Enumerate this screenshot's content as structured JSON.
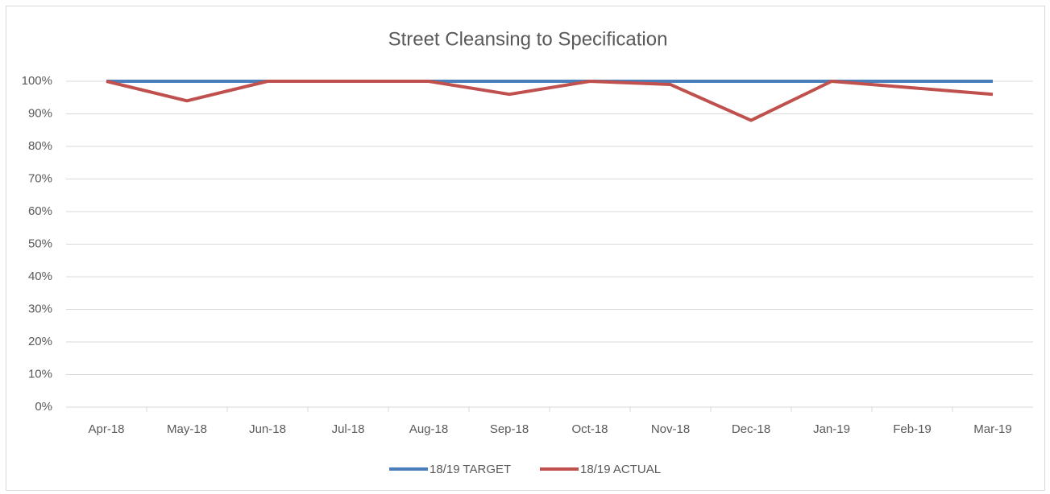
{
  "chart_data": {
    "type": "line",
    "title": "Street Cleansing to Specification",
    "categories": [
      "Apr-18",
      "May-18",
      "Jun-18",
      "Jul-18",
      "Aug-18",
      "Sep-18",
      "Oct-18",
      "Nov-18",
      "Dec-18",
      "Jan-19",
      "Feb-19",
      "Mar-19"
    ],
    "series": [
      {
        "name": "18/19 TARGET",
        "color": "#4a7ebb",
        "values": [
          100,
          100,
          100,
          100,
          100,
          100,
          100,
          100,
          100,
          100,
          100,
          100
        ]
      },
      {
        "name": "18/19 ACTUAL",
        "color": "#c0504d",
        "values": [
          100,
          94,
          100,
          100,
          100,
          96,
          100,
          99,
          88,
          100,
          98,
          96
        ]
      }
    ],
    "ylim": [
      0,
      100
    ],
    "yticks": [
      {
        "value": 0,
        "label": "0%"
      },
      {
        "value": 10,
        "label": "10%"
      },
      {
        "value": 20,
        "label": "20%"
      },
      {
        "value": 30,
        "label": "30%"
      },
      {
        "value": 40,
        "label": "40%"
      },
      {
        "value": 50,
        "label": "50%"
      },
      {
        "value": 60,
        "label": "60%"
      },
      {
        "value": 70,
        "label": "70%"
      },
      {
        "value": 80,
        "label": "80%"
      },
      {
        "value": 90,
        "label": "90%"
      },
      {
        "value": 100,
        "label": "100%"
      }
    ],
    "grid": true,
    "legend": "bottom"
  }
}
